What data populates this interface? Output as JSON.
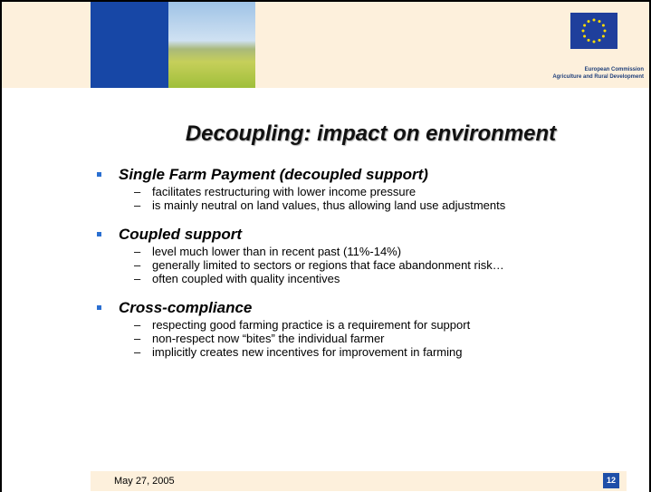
{
  "header": {
    "org_lines": [
      "European Commission",
      "Agriculture and Rural Development"
    ]
  },
  "title": "Decoupling: impact on environment",
  "sections": [
    {
      "heading": "Single Farm Payment (decoupled support)",
      "items": [
        "facilitates restructuring with lower income pressure",
        "is mainly neutral on land values, thus allowing land use adjustments"
      ]
    },
    {
      "heading": "Coupled support",
      "items": [
        "level much lower than in recent past (11%-14%)",
        "generally limited to sectors or regions that face abandonment risk…",
        "often coupled with quality incentives"
      ]
    },
    {
      "heading": "Cross-compliance",
      "items": [
        "respecting good farming practice is a requirement for support",
        "non-respect now “bites” the individual farmer",
        "implicitly creates new incentives for improvement in farming"
      ]
    }
  ],
  "footer": {
    "date": "May 27, 2005",
    "page": "12"
  }
}
